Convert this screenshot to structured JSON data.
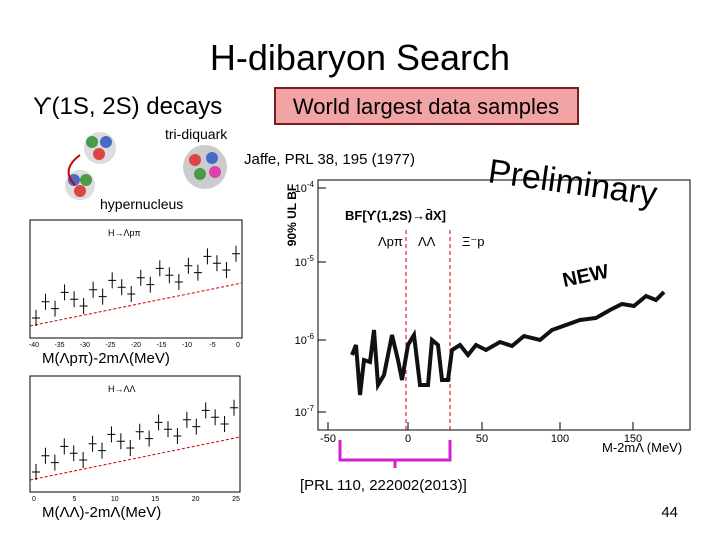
{
  "slide": {
    "title": "H-dibaryon Search",
    "subtitle": "ϒ(1S, 2S) decays",
    "highlight": "World largest data samples",
    "label_tri_diquark": "tri-diquark",
    "label_reference_jaffe": "Jaffe, PRL 38, 195 (1977)",
    "label_hypernucleus": "hypernucleus",
    "reference": "[PRL 110, 222002(2013)]",
    "page_number": "44",
    "main_plot": {
      "stamp": "Preliminary",
      "new_label": "NEW",
      "plot_label": "BF[ϒ(1,2S)→d̄X]",
      "channels": [
        "Λpπ",
        "ΛΛ",
        "Ξ⁻p"
      ],
      "y_axis_title": "90% UL BF",
      "x_axis_title": "M-2mΛ (MeV)",
      "xticks": [
        "-50",
        "0",
        "50",
        "100",
        "150"
      ],
      "yticks": [
        {
          "base": "10",
          "exp": "-4"
        },
        {
          "base": "10",
          "exp": "-5"
        },
        {
          "base": "10",
          "exp": "-6"
        },
        {
          "base": "10",
          "exp": "-7"
        }
      ]
    },
    "left_plots": [
      {
        "label": "H→Λpπ",
        "x_axis_title": "M(Λpπ)-2mΛ(MeV)",
        "xticks": [
          "-40",
          "-35",
          "-30",
          "-25",
          "-20",
          "-15",
          "-10",
          "-5",
          "0"
        ]
      },
      {
        "label": "H→ΛΛ",
        "x_axis_title": "M(ΛΛ)-2mΛ(MeV)",
        "xticks": [
          "0",
          "5",
          "10",
          "15",
          "20",
          "25"
        ]
      }
    ]
  }
}
